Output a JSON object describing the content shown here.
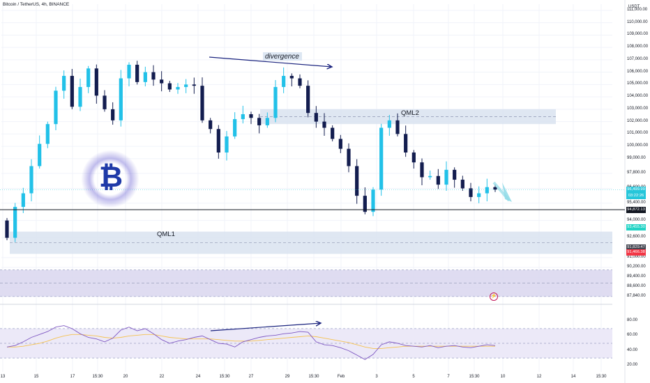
{
  "header": {
    "symbol": "Bitcoin / TetherUS, 4h, BINANCE",
    "currency": "USDT"
  },
  "chart_data": [
    {
      "type": "candlestick",
      "title": "Bitcoin / TetherUS, 4h, BINANCE",
      "ylabel": "USDT",
      "ylim": [
        87500,
        111500
      ],
      "ticks": [
        "111,000.00",
        "110,000.00",
        "109,000.00",
        "108,000.00",
        "107,000.00",
        "106,000.00",
        "105,000.00",
        "104,000.00",
        "103,000.00",
        "102,000.00",
        "101,000.00",
        "100,000.00",
        "99,000.00",
        "97,800.00",
        "96,600.00",
        "95,400.00",
        "94,000.00",
        "92,600.00",
        "91,000.00",
        "90,200.00",
        "89,400.00",
        "88,600.00",
        "87,840.00"
      ],
      "tick_values": [
        111000,
        110000,
        109000,
        108000,
        107000,
        106000,
        105000,
        104000,
        103000,
        102000,
        101000,
        100000,
        99000,
        97800,
        96600,
        95400,
        94000,
        92600,
        91000,
        90200,
        89400,
        88600,
        87840
      ],
      "x_labels": [
        "13",
        "15",
        "17",
        "15:30",
        "20",
        "22",
        "24",
        "15:30",
        "27",
        "29",
        "15:30",
        "Feb",
        "3",
        "5",
        "7",
        "15:30",
        "10",
        "12",
        "14",
        "15:30"
      ],
      "price_labels": [
        {
          "label": "96,499.99",
          "sub": "03:22:26",
          "value": 96500,
          "color": "#26c6da"
        },
        {
          "label": "94,872.13",
          "value": 94872,
          "color": "#131722"
        },
        {
          "label": "93,455.30",
          "value": 93455,
          "color": "#22d3c5"
        },
        {
          "label": "91,829.47",
          "value": 91829,
          "color": "#434651"
        },
        {
          "label": "91,466.38",
          "value": 91466,
          "color": "#f23645"
        }
      ],
      "horizontal_line": 94872,
      "zones": [
        {
          "name": "QML2",
          "from": 101800,
          "to": 103000
        },
        {
          "name": "QML1",
          "from": 91300,
          "to": 93100
        },
        {
          "name": "",
          "from": 87850,
          "to": 90000
        }
      ],
      "annotations": [
        "divergence",
        "QML2",
        "QML1"
      ],
      "close_series": [
        92600,
        95100,
        96200,
        98400,
        100200,
        101800,
        104500,
        105700,
        103200,
        104800,
        106300,
        104100,
        103000,
        102100,
        105500,
        106600,
        105200,
        106000,
        105400,
        105100,
        104600,
        104800,
        105000,
        104900,
        102100,
        101400,
        99500,
        100800,
        102200,
        102600,
        102300,
        101700,
        102300,
        104800,
        105700,
        105500,
        104900,
        102700,
        102000,
        101500,
        100600,
        99800,
        98400,
        96000,
        94700,
        96500,
        101500,
        102100,
        101000,
        99500,
        98700,
        97500,
        97600,
        96900,
        98100,
        97300,
        96600,
        95900,
        96200,
        96700,
        96500
      ]
    },
    {
      "type": "line",
      "ylim": [
        15,
        85
      ],
      "ticks": [
        "80.00",
        "60.00",
        "40.00",
        "20.00"
      ],
      "tick_values": [
        80,
        60,
        40,
        20
      ],
      "series": [
        {
          "values": [
            45,
            47,
            52,
            58,
            62,
            66,
            72,
            74,
            70,
            63,
            58,
            56,
            52,
            57,
            68,
            72,
            67,
            70,
            63,
            55,
            50,
            53,
            55,
            58,
            60,
            55,
            50,
            49,
            45,
            52,
            55,
            58,
            60,
            61,
            63,
            64,
            66,
            65,
            52,
            48,
            47,
            44,
            40,
            34,
            28,
            35,
            48,
            52,
            50,
            47,
            46,
            45,
            47,
            44,
            46,
            47,
            45,
            44,
            46,
            48,
            47
          ]
        },
        {
          "values": [
            45,
            45,
            46,
            48,
            50,
            53,
            57,
            60,
            62,
            62,
            61,
            60,
            58,
            57,
            58,
            60,
            61,
            62,
            62,
            60,
            58,
            57,
            56,
            56,
            56,
            56,
            55,
            54,
            53,
            53,
            53,
            54,
            55,
            56,
            57,
            58,
            59,
            60,
            59,
            57,
            55,
            53,
            51,
            48,
            45,
            43,
            43,
            44,
            45,
            46,
            46,
            46,
            46,
            46,
            46,
            46,
            46,
            46,
            46,
            46,
            46
          ]
        }
      ],
      "annotations": [
        "rsi-divergence"
      ]
    }
  ]
}
